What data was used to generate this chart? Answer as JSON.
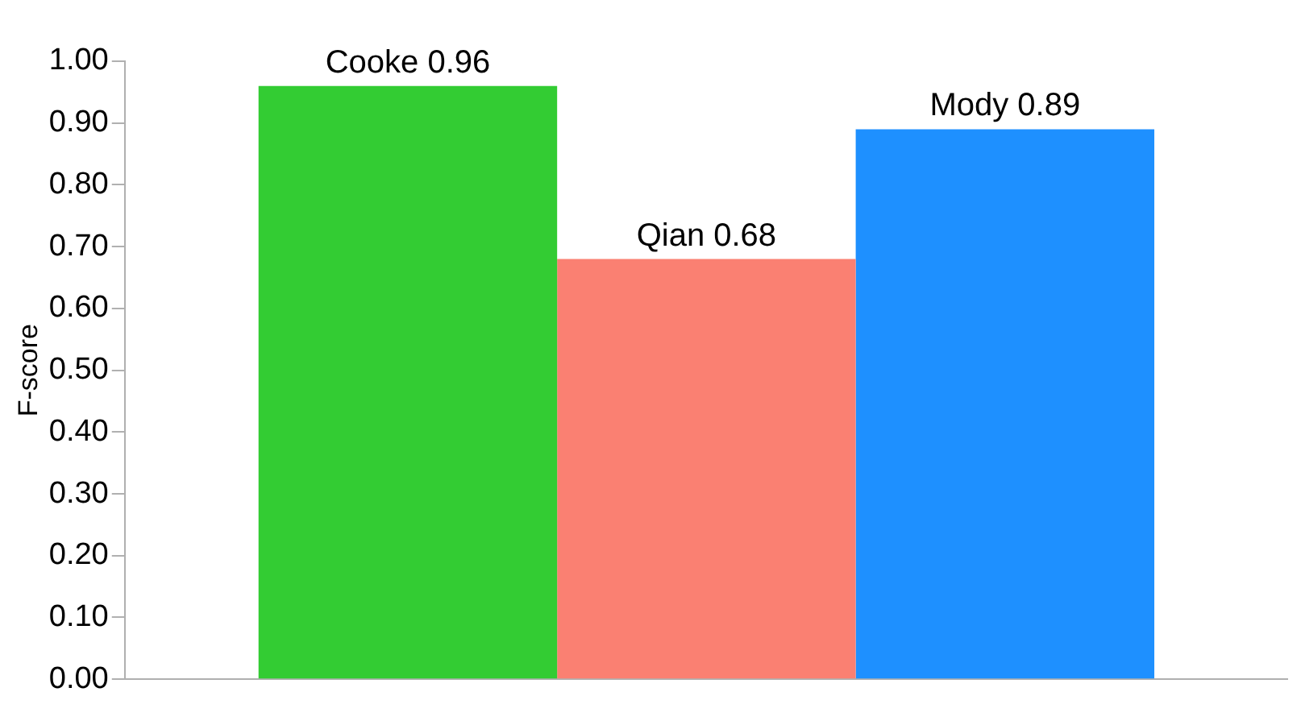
{
  "chart_data": {
    "type": "bar",
    "ylabel": "F-score",
    "categories": [
      null
    ],
    "series": [
      {
        "name": "Cooke",
        "color": "#33cc33",
        "values": [
          0.96
        ]
      },
      {
        "name": "Qian",
        "color": "#fa8072",
        "values": [
          0.68
        ]
      },
      {
        "name": "Mody",
        "color": "#1e90ff",
        "values": [
          0.89
        ]
      }
    ],
    "ylim": [
      0,
      1
    ],
    "yticks": [
      {
        "value": 0,
        "label": "0.00"
      },
      {
        "value": 0.1,
        "label": "0.10"
      },
      {
        "value": 0.2,
        "label": "0.20"
      },
      {
        "value": 0.3,
        "label": "0.30"
      },
      {
        "value": 0.4,
        "label": "0.40"
      },
      {
        "value": 0.5,
        "label": "0.50"
      },
      {
        "value": 0.6,
        "label": "0.60"
      },
      {
        "value": 0.7,
        "label": "0.70"
      },
      {
        "value": 0.8,
        "label": "0.80"
      },
      {
        "value": 0.9,
        "label": "0.90"
      },
      {
        "value": 1,
        "label": "1.00"
      }
    ],
    "data_labels": true,
    "legend": false,
    "grid": false
  }
}
